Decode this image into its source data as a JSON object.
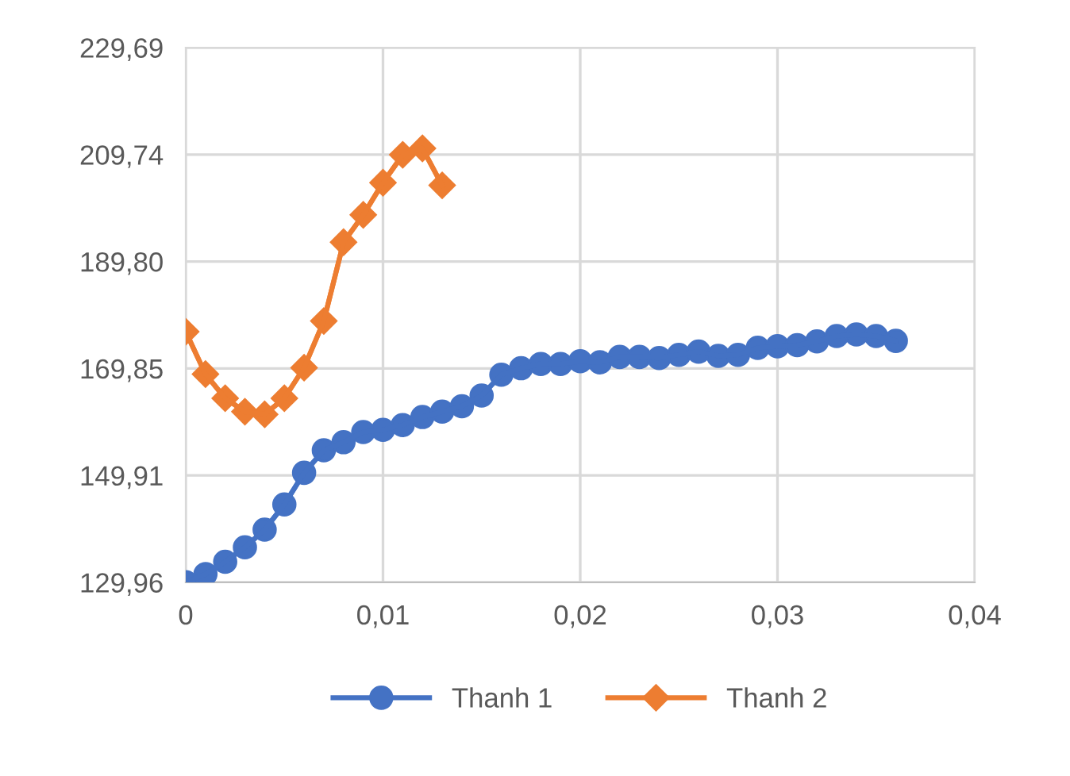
{
  "chart_data": {
    "type": "line",
    "xlim": [
      0,
      0.04
    ],
    "xticks": [
      0,
      {
        "value": 0.01,
        "label": "0,01"
      },
      {
        "value": 0.02,
        "label": "0,02"
      },
      {
        "value": 0.03,
        "label": "0,03"
      },
      {
        "value": 0.04,
        "label": "0,04"
      }
    ],
    "ylim": [
      129.96,
      229.69
    ],
    "yticks": [
      {
        "value": 129.96,
        "label": "129,96"
      },
      {
        "value": 149.91,
        "label": "149,91"
      },
      {
        "value": 169.85,
        "label": "169,85"
      },
      {
        "value": 189.8,
        "label": "189,80"
      },
      {
        "value": 209.74,
        "label": "209,74"
      },
      {
        "value": 229.69,
        "label": "229,69"
      }
    ],
    "grid": true,
    "legend": "bottom",
    "series": [
      {
        "name": "Thanh 1",
        "color": "#4472c4",
        "marker": "circle",
        "x": [
          0,
          0.001,
          0.002,
          0.003,
          0.004,
          0.005,
          0.006,
          0.007,
          0.008,
          0.009,
          0.01,
          0.011,
          0.012,
          0.013,
          0.014,
          0.015,
          0.016,
          0.017,
          0.018,
          0.019,
          0.02,
          0.021,
          0.022,
          0.023,
          0.024,
          0.025,
          0.026,
          0.027,
          0.028,
          0.029,
          0.03,
          0.031,
          0.032,
          0.033,
          0.034,
          0.035,
          0.036
        ],
        "values": [
          130.0,
          131.5,
          133.8,
          136.5,
          139.8,
          144.5,
          150.4,
          154.6,
          156.1,
          158.0,
          158.4,
          159.3,
          160.8,
          161.8,
          162.8,
          164.8,
          168.7,
          169.9,
          170.7,
          170.7,
          171.2,
          171.0,
          172.0,
          172.0,
          171.8,
          172.4,
          173.0,
          172.2,
          172.4,
          173.7,
          174.0,
          174.2,
          174.9,
          175.9,
          176.2,
          175.9,
          175.0
        ]
      },
      {
        "name": "Thanh 2",
        "color": "#ed7d31",
        "marker": "diamond",
        "x": [
          0,
          0.001,
          0.002,
          0.003,
          0.004,
          0.005,
          0.006,
          0.007,
          0.008,
          0.009,
          0.01,
          0.011,
          0.012,
          0.013
        ],
        "values": [
          176.7,
          168.8,
          164.3,
          161.8,
          161.3,
          164.3,
          170.0,
          178.7,
          193.4,
          198.5,
          204.5,
          209.7,
          210.9,
          204.0
        ]
      }
    ]
  }
}
